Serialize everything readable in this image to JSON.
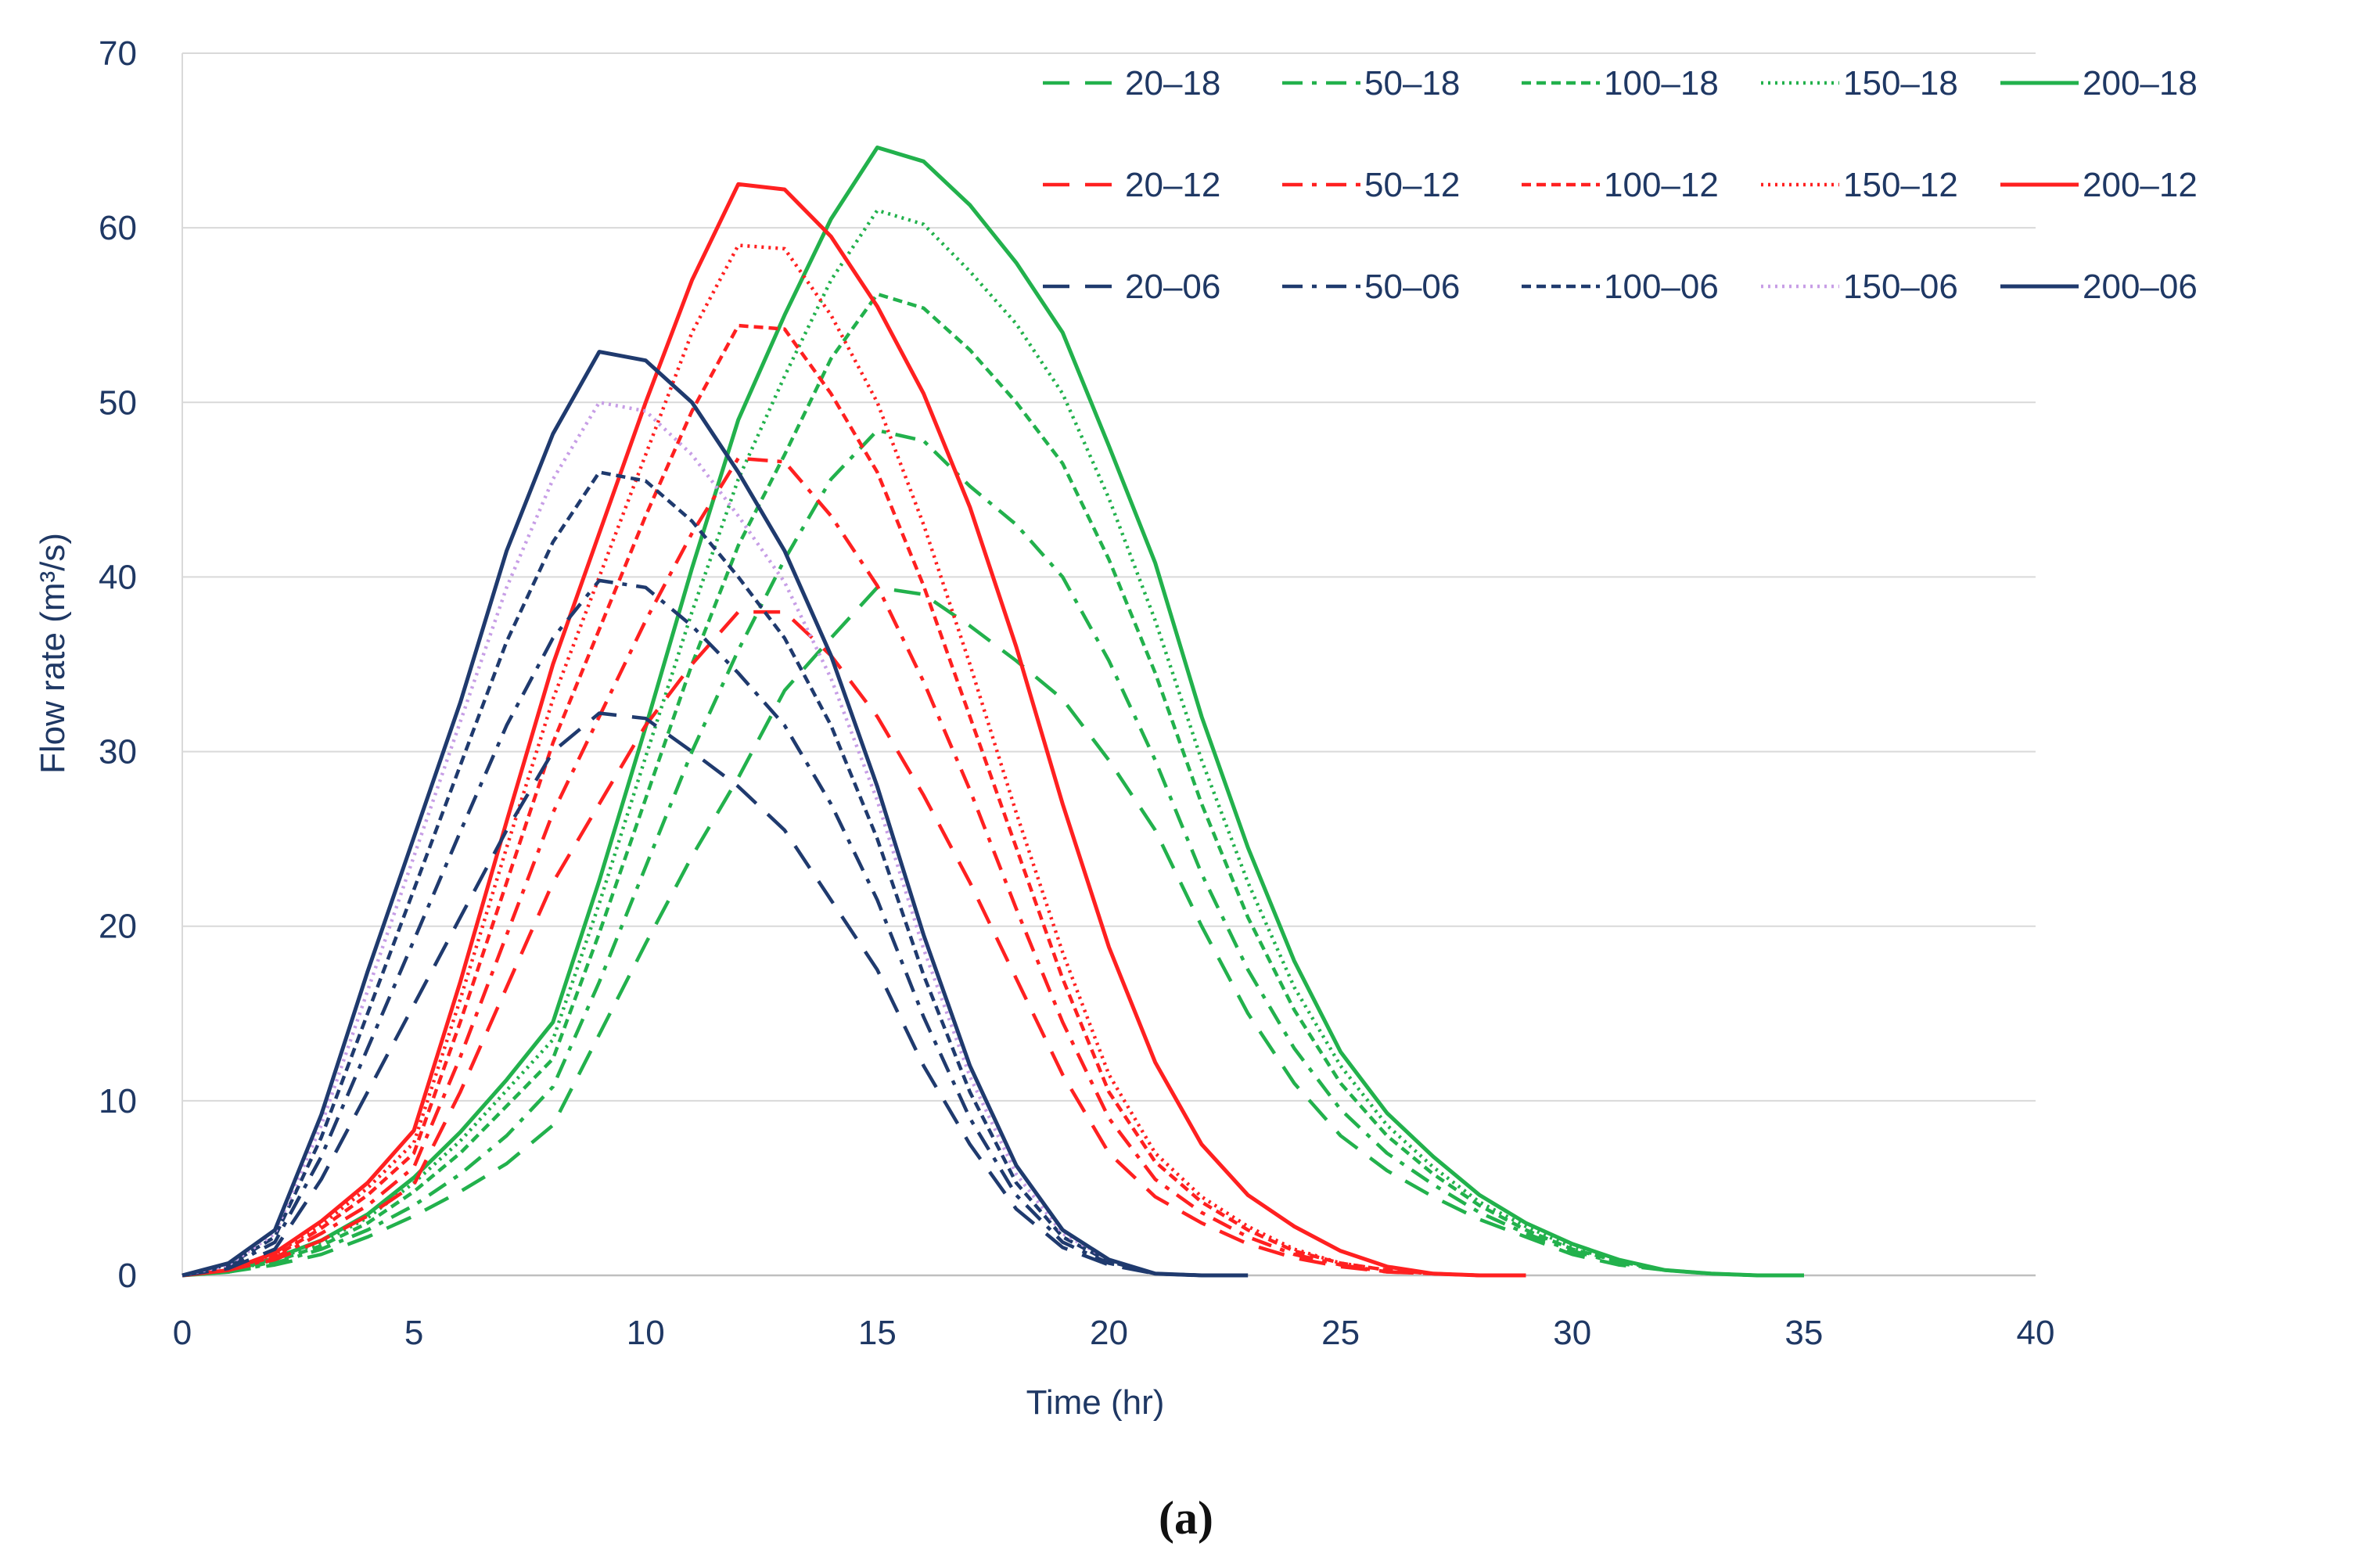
{
  "chart_data": {
    "type": "line",
    "title": "",
    "xlabel": "Time (hr)",
    "ylabel": "Flow rate (m³/s)",
    "xlim": [
      0,
      40
    ],
    "ylim": [
      0,
      70
    ],
    "xticks": [
      0,
      5,
      10,
      15,
      20,
      25,
      30,
      35,
      40
    ],
    "yticks": [
      0,
      10,
      20,
      30,
      40,
      50,
      60,
      70
    ],
    "grid": "horizontal",
    "legend_position": "top-right",
    "caption": "(a)",
    "colors": {
      "green": "#22b14c",
      "red": "#ff2020",
      "navy": "#1f3a6e",
      "lavender": "#c79ee6",
      "axis": "#1f3864",
      "grid": "#d9d9d9"
    },
    "series": [
      {
        "name": "20–18",
        "color": "#22b14c",
        "dash": "long-dash",
        "x": [
          0,
          1,
          2,
          3,
          4,
          5,
          6,
          7,
          8,
          9,
          10,
          11,
          12,
          13,
          14,
          15,
          16,
          17,
          18,
          19,
          20,
          21,
          22,
          23,
          24,
          25,
          26,
          27,
          28,
          29,
          30,
          31,
          32,
          33,
          34,
          35
        ],
        "y": [
          0,
          0.2,
          0.6,
          1.2,
          2.2,
          3.4,
          4.8,
          6.4,
          8.6,
          13.8,
          19.0,
          24.0,
          28.5,
          33.5,
          36.5,
          39.4,
          39.0,
          37.2,
          35.2,
          33.0,
          29.5,
          25.5,
          20.0,
          15.0,
          11.0,
          8.0,
          6.0,
          4.5,
          3.2,
          2.2,
          1.2,
          0.6,
          0.3,
          0.1,
          0,
          0
        ]
      },
      {
        "name": "50–18",
        "color": "#22b14c",
        "dash": "dash-dot",
        "x": [
          0,
          1,
          2,
          3,
          4,
          5,
          6,
          7,
          8,
          9,
          10,
          11,
          12,
          13,
          14,
          15,
          16,
          17,
          18,
          19,
          20,
          21,
          22,
          23,
          24,
          25,
          26,
          27,
          28,
          29,
          30,
          31,
          32,
          33,
          34,
          35
        ],
        "y": [
          0,
          0.2,
          0.7,
          1.5,
          2.6,
          4.0,
          5.8,
          8.0,
          10.8,
          16.8,
          23.4,
          30.0,
          35.8,
          41.0,
          45.6,
          48.4,
          47.8,
          45.2,
          43.0,
          40.0,
          35.2,
          29.5,
          23.0,
          17.5,
          13.0,
          9.5,
          7.0,
          5.2,
          3.6,
          2.4,
          1.4,
          0.7,
          0.3,
          0.1,
          0,
          0
        ]
      },
      {
        "name": "100–18",
        "color": "#22b14c",
        "dash": "short-dash",
        "x": [
          0,
          1,
          2,
          3,
          4,
          5,
          6,
          7,
          8,
          9,
          10,
          11,
          12,
          13,
          14,
          15,
          16,
          17,
          18,
          19,
          20,
          21,
          22,
          23,
          24,
          25,
          26,
          27,
          28,
          29,
          30,
          31,
          32,
          33,
          34,
          35
        ],
        "y": [
          0,
          0.2,
          0.8,
          1.7,
          3.0,
          4.8,
          7.0,
          9.7,
          12.4,
          19.6,
          27.3,
          35.0,
          41.8,
          47.0,
          52.5,
          56.2,
          55.4,
          53.0,
          50.0,
          46.5,
          41.0,
          34.5,
          27.0,
          20.5,
          15.2,
          11.0,
          8.0,
          5.8,
          4.0,
          2.6,
          1.5,
          0.8,
          0.3,
          0.1,
          0,
          0
        ]
      },
      {
        "name": "150–18",
        "color": "#22b14c",
        "dash": "dot",
        "x": [
          0,
          1,
          2,
          3,
          4,
          5,
          6,
          7,
          8,
          9,
          10,
          11,
          12,
          13,
          14,
          15,
          16,
          17,
          18,
          19,
          20,
          21,
          22,
          23,
          24,
          25,
          26,
          27,
          28,
          29,
          30,
          31,
          32,
          33,
          34,
          35
        ],
        "y": [
          0,
          0.2,
          0.9,
          1.9,
          3.3,
          5.3,
          7.7,
          10.6,
          13.5,
          21.3,
          29.7,
          38.0,
          45.6,
          51.5,
          57.0,
          61.0,
          60.2,
          57.5,
          54.5,
          50.5,
          44.5,
          37.5,
          29.5,
          22.5,
          16.5,
          12.0,
          8.6,
          6.2,
          4.2,
          2.8,
          1.6,
          0.8,
          0.3,
          0.1,
          0,
          0
        ]
      },
      {
        "name": "200–18",
        "color": "#22b14c",
        "dash": "solid",
        "x": [
          0,
          1,
          2,
          3,
          4,
          5,
          6,
          7,
          8,
          9,
          10,
          11,
          12,
          13,
          14,
          15,
          16,
          17,
          18,
          19,
          20,
          21,
          22,
          23,
          24,
          25,
          26,
          27,
          28,
          29,
          30,
          31,
          32,
          33,
          34,
          35
        ],
        "y": [
          0,
          0.2,
          1.0,
          2.0,
          3.5,
          5.6,
          8.2,
          11.2,
          14.5,
          22.6,
          31.4,
          40.5,
          49.0,
          55.0,
          60.5,
          64.6,
          63.8,
          61.3,
          58.0,
          54.0,
          47.5,
          40.8,
          32.0,
          24.5,
          18.0,
          12.8,
          9.3,
          6.8,
          4.6,
          3.0,
          1.8,
          0.9,
          0.3,
          0.1,
          0,
          0
        ]
      },
      {
        "name": "20–12",
        "color": "#ff2020",
        "dash": "long-dash",
        "x": [
          0,
          1,
          2,
          3,
          4,
          5,
          6,
          7,
          8,
          9,
          10,
          11,
          12,
          13,
          14,
          15,
          16,
          17,
          18,
          19,
          20,
          21,
          22,
          23,
          24,
          25,
          26,
          27,
          28,
          29
        ],
        "y": [
          0,
          0.3,
          0.9,
          2.0,
          3.4,
          5.2,
          10.5,
          16.5,
          22.5,
          27.0,
          31.5,
          35.0,
          38.0,
          38.0,
          35.5,
          32.0,
          27.5,
          22.5,
          17.0,
          11.5,
          7.0,
          4.5,
          3.0,
          1.8,
          1.0,
          0.5,
          0.2,
          0.1,
          0,
          0
        ]
      },
      {
        "name": "50–12",
        "color": "#ff2020",
        "dash": "dash-dot",
        "x": [
          0,
          1,
          2,
          3,
          4,
          5,
          6,
          7,
          8,
          9,
          10,
          11,
          12,
          13,
          14,
          15,
          16,
          17,
          18,
          19,
          20,
          21,
          22,
          23,
          24,
          25,
          26,
          27,
          28,
          29
        ],
        "y": [
          0,
          0.3,
          1.0,
          2.4,
          4.0,
          6.2,
          12.5,
          19.5,
          26.5,
          32.0,
          37.5,
          42.5,
          46.8,
          46.6,
          43.5,
          39.5,
          34.0,
          27.8,
          21.0,
          14.5,
          9.0,
          5.5,
          3.6,
          2.2,
          1.2,
          0.6,
          0.2,
          0.1,
          0,
          0
        ]
      },
      {
        "name": "100–12",
        "color": "#ff2020",
        "dash": "short-dash",
        "x": [
          0,
          1,
          2,
          3,
          4,
          5,
          6,
          7,
          8,
          9,
          10,
          11,
          12,
          13,
          14,
          15,
          16,
          17,
          18,
          19,
          20,
          21,
          22,
          23,
          24,
          25,
          26,
          27,
          28,
          29
        ],
        "y": [
          0,
          0.3,
          1.1,
          2.7,
          4.6,
          7.0,
          14.5,
          22.5,
          30.5,
          37.0,
          43.5,
          49.5,
          54.4,
          54.2,
          50.5,
          46.0,
          39.5,
          32.0,
          24.5,
          17.0,
          10.5,
          6.5,
          4.2,
          2.6,
          1.4,
          0.7,
          0.3,
          0.1,
          0,
          0
        ]
      },
      {
        "name": "150–12",
        "color": "#ff2020",
        "dash": "dot",
        "x": [
          0,
          1,
          2,
          3,
          4,
          5,
          6,
          7,
          8,
          9,
          10,
          11,
          12,
          13,
          14,
          15,
          16,
          17,
          18,
          19,
          20,
          21,
          22,
          23,
          24,
          25,
          26,
          27,
          28,
          29
        ],
        "y": [
          0,
          0.3,
          1.2,
          2.9,
          5.0,
          7.6,
          15.8,
          24.5,
          33.0,
          40.0,
          47.0,
          54.0,
          59.0,
          58.8,
          55.0,
          50.0,
          43.0,
          35.0,
          26.5,
          18.5,
          11.5,
          7.0,
          4.5,
          2.8,
          1.5,
          0.7,
          0.3,
          0.1,
          0,
          0
        ]
      },
      {
        "name": "200–12",
        "color": "#ff2020",
        "dash": "solid",
        "x": [
          0,
          1,
          2,
          3,
          4,
          5,
          6,
          7,
          8,
          9,
          10,
          11,
          12,
          13,
          14,
          15,
          16,
          17,
          18,
          19,
          20,
          21,
          22,
          23,
          24,
          25,
          26,
          27,
          28,
          29
        ],
        "y": [
          0,
          0.3,
          1.3,
          3.1,
          5.3,
          8.3,
          16.8,
          26.0,
          35.0,
          42.5,
          50.0,
          57.0,
          62.5,
          62.2,
          59.5,
          55.5,
          50.5,
          44.0,
          36.0,
          27.0,
          18.8,
          12.2,
          7.5,
          4.6,
          2.8,
          1.4,
          0.5,
          0.1,
          0,
          0
        ]
      },
      {
        "name": "20–06",
        "color": "#1f3a6e",
        "dash": "long-dash",
        "x": [
          0,
          1,
          2,
          3,
          4,
          5,
          6,
          7,
          8,
          9,
          10,
          11,
          12,
          13,
          14,
          15,
          16,
          17,
          18,
          19,
          20,
          21,
          22,
          23
        ],
        "y": [
          0,
          0.4,
          1.5,
          5.5,
          10.5,
          15.5,
          20.5,
          25.5,
          30.0,
          32.2,
          31.9,
          30.0,
          28.0,
          25.5,
          21.5,
          17.5,
          12.0,
          7.5,
          3.8,
          1.6,
          0.6,
          0.1,
          0,
          0
        ]
      },
      {
        "name": "50–06",
        "color": "#1f3a6e",
        "dash": "dash-dot",
        "x": [
          0,
          1,
          2,
          3,
          4,
          5,
          6,
          7,
          8,
          9,
          10,
          11,
          12,
          13,
          14,
          15,
          16,
          17,
          18,
          19,
          20,
          21,
          22,
          23
        ],
        "y": [
          0,
          0.5,
          1.9,
          6.8,
          13.0,
          19.2,
          25.4,
          31.5,
          36.5,
          39.8,
          39.4,
          37.2,
          34.5,
          31.5,
          27.0,
          21.5,
          14.8,
          9.0,
          4.6,
          1.9,
          0.7,
          0.1,
          0,
          0
        ]
      },
      {
        "name": "100–06",
        "color": "#1f3a6e",
        "dash": "short-dash",
        "x": [
          0,
          1,
          2,
          3,
          4,
          5,
          6,
          7,
          8,
          9,
          10,
          11,
          12,
          13,
          14,
          15,
          16,
          17,
          18,
          19,
          20,
          21,
          22,
          23
        ],
        "y": [
          0,
          0.6,
          2.2,
          7.9,
          15.0,
          22.1,
          29.2,
          36.3,
          42.0,
          46.0,
          45.5,
          43.2,
          40.0,
          36.5,
          31.5,
          25.0,
          17.2,
          10.5,
          5.3,
          2.2,
          0.8,
          0.1,
          0,
          0
        ]
      },
      {
        "name": "150–06",
        "color": "#c79ee6",
        "dash": "dot",
        "x": [
          0,
          1,
          2,
          3,
          4,
          5,
          6,
          7,
          8,
          9,
          10,
          11,
          12,
          13,
          14,
          15,
          16,
          17,
          18,
          19,
          20,
          21,
          22,
          23
        ],
        "y": [
          0,
          0.6,
          2.4,
          8.6,
          16.3,
          24.0,
          31.7,
          39.4,
          45.6,
          50.0,
          49.5,
          47.0,
          43.5,
          39.7,
          34.2,
          27.2,
          18.7,
          11.4,
          5.8,
          2.4,
          0.9,
          0.1,
          0,
          0
        ]
      },
      {
        "name": "200–06",
        "color": "#1f3a6e",
        "dash": "solid",
        "x": [
          0,
          1,
          2,
          3,
          4,
          5,
          6,
          7,
          8,
          9,
          10,
          11,
          12,
          13,
          14,
          15,
          16,
          17,
          18,
          19,
          20,
          21,
          22,
          23
        ],
        "y": [
          0,
          0.7,
          2.6,
          9.2,
          17.4,
          25.1,
          32.8,
          41.5,
          48.2,
          52.9,
          52.4,
          50.0,
          46.0,
          41.5,
          35.5,
          28.0,
          19.5,
          12.0,
          6.3,
          2.6,
          0.9,
          0.1,
          0,
          0
        ]
      }
    ]
  }
}
